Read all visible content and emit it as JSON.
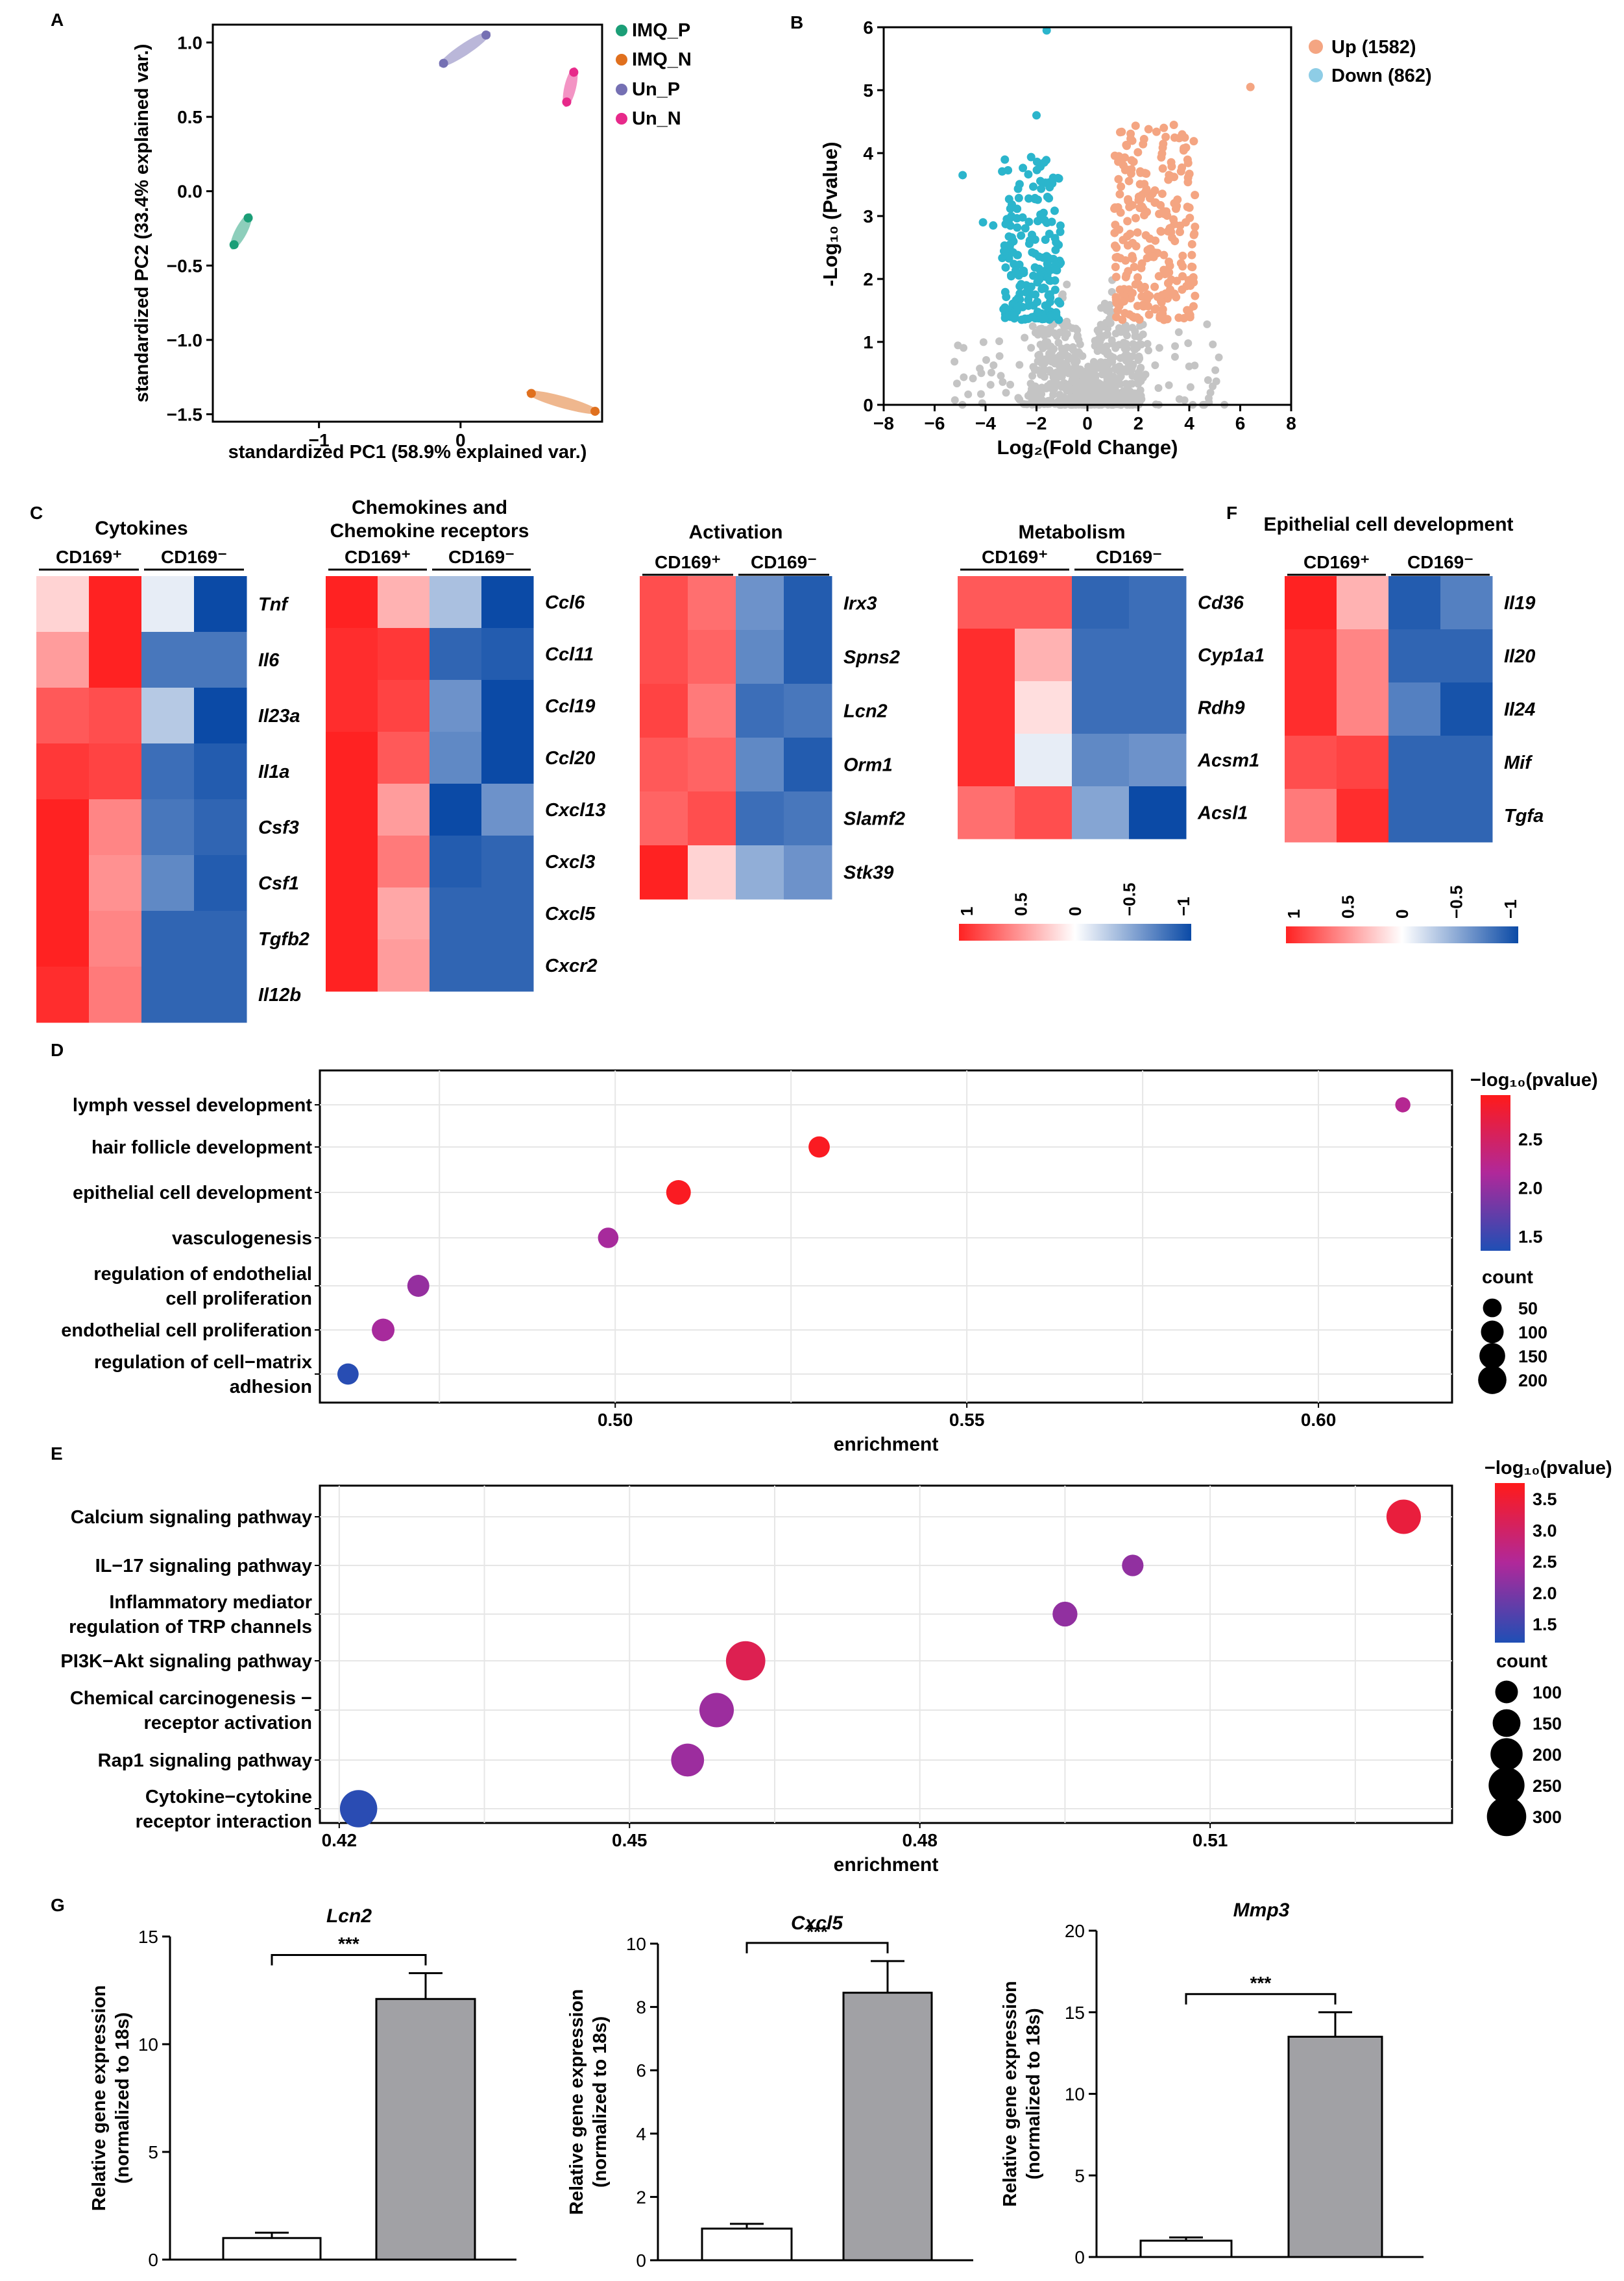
{
  "colors": {
    "imq_p": "#1b9e77",
    "imq_n": "#e0701e",
    "un_p": "#7570b3",
    "un_n": "#e7298a",
    "up": "#f4a582",
    "down": "#2bb5cc",
    "ns": "#c4c4c4",
    "hm_pos": "#ff2222",
    "hm_mid": "#ffffff",
    "hm_neg": "#0b4aa6",
    "bar_fill": "#a1a1a5"
  },
  "panels": {
    "A": "A",
    "B": "B",
    "C": "C",
    "D": "D",
    "E": "E",
    "F": "F",
    "G": "G"
  },
  "chart_data": [
    {
      "id": "A",
      "type": "scatter",
      "xlabel": "standardized PC1 (58.9% explained var.)",
      "ylabel": "standardized PC2 (33.4% explained var.)",
      "xlim": [
        -1.75,
        1.0
      ],
      "ylim": [
        -1.55,
        1.12
      ],
      "xticks": [
        -1,
        0
      ],
      "yticks": [
        -1.5,
        -1.0,
        -0.5,
        0.0,
        0.5,
        1.0
      ],
      "ytick_labels": [
        "−1.5",
        "−1.0",
        "−0.5",
        "0.0",
        "0.5",
        "1.0"
      ],
      "xtick_labels": [
        "−1",
        "0"
      ],
      "series": [
        {
          "name": "IMQ_P",
          "color": "#1b9e77",
          "points": [
            [
              -1.6,
              -0.36
            ],
            [
              -1.5,
              -0.18
            ]
          ]
        },
        {
          "name": "IMQ_N",
          "color": "#e0701e",
          "points": [
            [
              0.5,
              -1.36
            ],
            [
              0.95,
              -1.48
            ]
          ]
        },
        {
          "name": "Un_P",
          "color": "#7570b3",
          "points": [
            [
              -0.12,
              0.86
            ],
            [
              0.18,
              1.05
            ]
          ]
        },
        {
          "name": "Un_N",
          "color": "#e7298a",
          "points": [
            [
              0.75,
              0.6
            ],
            [
              0.8,
              0.8
            ]
          ]
        }
      ]
    },
    {
      "id": "B",
      "type": "scatter",
      "xlabel": "Log₂(Fold Change)",
      "ylabel": "-Log₁₀ (Pvalue)",
      "xlim": [
        -8,
        8
      ],
      "ylim": [
        0,
        6
      ],
      "xticks": [
        -8,
        -6,
        -4,
        -2,
        0,
        2,
        4,
        6,
        8
      ],
      "yticks": [
        0,
        1,
        2,
        3,
        4,
        5,
        6
      ],
      "xtick_labels": [
        "−8",
        "−6",
        "−4",
        "−2",
        "0",
        "2",
        "4",
        "6",
        "8"
      ],
      "ytick_labels": [
        "0",
        "1",
        "2",
        "3",
        "4",
        "5",
        "6"
      ],
      "legend": [
        {
          "name": "Up (1582)",
          "color": "#f4a582"
        },
        {
          "name": "Down (862)",
          "color": "#8ecde6"
        }
      ]
    },
    {
      "id": "C",
      "type": "heatmap",
      "columns": [
        "CD169⁺",
        "CD169⁻"
      ],
      "groups": [
        {
          "title": [
            "Cytokines"
          ],
          "genes": [
            "Tnf",
            "Il6",
            "Il23a",
            "Il1a",
            "Csf3",
            "Csf1",
            "Tgfb2",
            "Il12b"
          ],
          "values": [
            [
              0.2,
              1.0,
              -0.1,
              -1.0
            ],
            [
              0.45,
              1.0,
              -0.75,
              -0.75
            ],
            [
              0.75,
              0.8,
              -0.3,
              -1.0
            ],
            [
              0.9,
              0.85,
              -0.8,
              -0.9
            ],
            [
              1.0,
              0.55,
              -0.75,
              -0.85
            ],
            [
              1.0,
              0.5,
              -0.65,
              -0.9
            ],
            [
              1.0,
              0.55,
              -0.85,
              -0.85
            ],
            [
              0.95,
              0.6,
              -0.85,
              -0.85
            ]
          ]
        },
        {
          "title": [
            "Chemokines and",
            "Chemokine receptors"
          ],
          "genes": [
            "Ccl6",
            "Ccl11",
            "Ccl19",
            "Ccl20",
            "Cxcl13",
            "Cxcl3",
            "Cxcl5",
            "Cxcr2"
          ],
          "values": [
            [
              1.0,
              0.35,
              -0.35,
              -1.0
            ],
            [
              0.95,
              0.9,
              -0.85,
              -0.9
            ],
            [
              0.95,
              0.85,
              -0.6,
              -1.0
            ],
            [
              1.0,
              0.75,
              -0.65,
              -1.0
            ],
            [
              1.0,
              0.45,
              -1.0,
              -0.6
            ],
            [
              1.0,
              0.6,
              -0.9,
              -0.85
            ],
            [
              1.0,
              0.4,
              -0.85,
              -0.85
            ],
            [
              1.0,
              0.45,
              -0.85,
              -0.85
            ]
          ]
        },
        {
          "title": [
            "Activation"
          ],
          "genes": [
            "Irx3",
            "Spns2",
            "Lcn2",
            "Orm1",
            "Slamf2",
            "Stk39"
          ],
          "values": [
            [
              0.8,
              0.65,
              -0.6,
              -0.9
            ],
            [
              0.8,
              0.7,
              -0.65,
              -0.9
            ],
            [
              0.85,
              0.6,
              -0.8,
              -0.75
            ],
            [
              0.75,
              0.7,
              -0.65,
              -0.9
            ],
            [
              0.7,
              0.8,
              -0.8,
              -0.75
            ],
            [
              1.0,
              0.2,
              -0.45,
              -0.6
            ]
          ]
        },
        {
          "title": [
            "Metabolism"
          ],
          "genes": [
            "Cd36",
            "Cyp1a1",
            "Rdh9",
            "Acsm1",
            "Acsl1"
          ],
          "values": [
            [
              0.75,
              0.75,
              -0.85,
              -0.8
            ],
            [
              0.95,
              0.35,
              -0.8,
              -0.8
            ],
            [
              0.95,
              0.15,
              -0.8,
              -0.8
            ],
            [
              0.95,
              -0.1,
              -0.65,
              -0.6
            ],
            [
              0.65,
              0.8,
              -0.5,
              -1.0
            ]
          ]
        },
        {
          "title": [
            "Epithelial cell development"
          ],
          "genes": [
            "Il19",
            "Il20",
            "Il24",
            "Mif",
            "Tgfa"
          ],
          "values": [
            [
              1.0,
              0.35,
              -0.9,
              -0.7
            ],
            [
              0.95,
              0.55,
              -0.85,
              -0.85
            ],
            [
              0.95,
              0.55,
              -0.7,
              -0.95
            ],
            [
              0.8,
              0.85,
              -0.85,
              -0.85
            ],
            [
              0.6,
              0.95,
              -0.85,
              -0.85
            ]
          ]
        }
      ],
      "scale_ticks": [
        "1",
        "0.5",
        "0",
        "−0.5",
        "−1"
      ]
    },
    {
      "id": "D",
      "type": "scatter",
      "xlabel": "enrichment",
      "xlim": [
        0.458,
        0.619
      ],
      "xticks": [
        0.5,
        0.55,
        0.6
      ],
      "xtick_labels": [
        "0.50",
        "0.55",
        "0.60"
      ],
      "terms": [
        [
          "lymph vessel development"
        ],
        [
          "hair follicle development"
        ],
        [
          "epithelial cell development"
        ],
        [
          "vasculogenesis"
        ],
        [
          "regulation of endothelial",
          "cell proliferation"
        ],
        [
          "endothelial cell proliferation"
        ],
        [
          "regulation of cell−matrix",
          "adhesion"
        ]
      ],
      "enrichment": [
        0.612,
        0.529,
        0.509,
        0.499,
        0.472,
        0.467,
        0.462
      ],
      "pvalue_log": [
        2.2,
        2.9,
        2.9,
        2.1,
        2.0,
        2.1,
        1.4
      ],
      "count": [
        20,
        80,
        130,
        70,
        90,
        100,
        80
      ],
      "color_label": "−log₁₀(pvalue)",
      "color_range": [
        1.35,
        2.95
      ],
      "color_ticks": [
        "2.5",
        "2.0",
        "1.5"
      ],
      "color_tick_values": [
        2.5,
        2.0,
        1.5
      ],
      "size_label": "count",
      "size_ticks": [
        "50",
        "100",
        "150",
        "200"
      ],
      "size_tick_values": [
        50,
        100,
        150,
        200
      ]
    },
    {
      "id": "E",
      "type": "scatter",
      "xlabel": "enrichment",
      "xlim": [
        0.418,
        0.535
      ],
      "xticks": [
        0.42,
        0.45,
        0.48,
        0.51
      ],
      "xtick_labels": [
        "0.42",
        "0.45",
        "0.48",
        "0.51"
      ],
      "terms": [
        [
          "Calcium signaling pathway"
        ],
        [
          "IL−17 signaling pathway"
        ],
        [
          "Inflammatory mediator",
          "regulation of TRP channels"
        ],
        [
          "PI3K−Akt signaling pathway"
        ],
        [
          "Chemical carcinogenesis −",
          "receptor activation"
        ],
        [
          "Rap1 signaling pathway"
        ],
        [
          "Cytokine−cytokine",
          "receptor interaction"
        ]
      ],
      "enrichment": [
        0.53,
        0.502,
        0.495,
        0.462,
        0.459,
        0.456,
        0.422
      ],
      "pvalue_log": [
        3.4,
        2.2,
        2.2,
        3.2,
        2.3,
        2.3,
        1.3
      ],
      "count": [
        230,
        90,
        120,
        300,
        230,
        210,
        270
      ],
      "color_label": "−log₁₀(pvalue)",
      "color_range": [
        1.2,
        3.75
      ],
      "color_ticks": [
        "3.5",
        "3.0",
        "2.5",
        "2.0",
        "1.5"
      ],
      "color_tick_values": [
        3.5,
        3.0,
        2.5,
        2.0,
        1.5
      ],
      "size_label": "count",
      "size_ticks": [
        "100",
        "150",
        "200",
        "250",
        "300"
      ],
      "size_tick_values": [
        100,
        150,
        200,
        250,
        300
      ]
    },
    {
      "id": "G",
      "type": "bar",
      "ylabel": [
        "Relative gene expression",
        "(normalized to 18s)"
      ],
      "sig": "***",
      "plots": [
        {
          "title": "Lcn2",
          "ymax": 15,
          "yticks": [
            0,
            5,
            10,
            15
          ],
          "values": [
            1.0,
            12.1
          ],
          "errors": [
            0.25,
            1.2
          ]
        },
        {
          "title": "Cxcl5",
          "ymax": 10,
          "yticks": [
            0,
            2,
            4,
            6,
            8,
            10
          ],
          "values": [
            1.0,
            8.45
          ],
          "errors": [
            0.15,
            1.0
          ]
        },
        {
          "title": "Mmp3",
          "ymax": 20,
          "yticks": [
            0,
            5,
            10,
            15,
            20
          ],
          "values": [
            1.0,
            13.5
          ],
          "errors": [
            0.2,
            1.5
          ]
        }
      ]
    }
  ]
}
